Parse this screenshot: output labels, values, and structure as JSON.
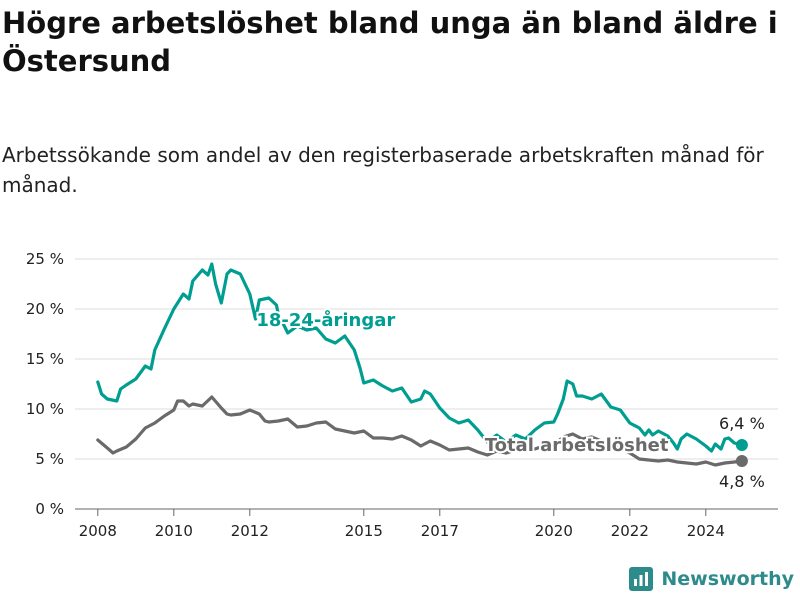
{
  "title": "Högre arbetslöshet bland unga än bland äldre i Östersund",
  "subtitle": "Arbetssökande som andel av den registerbaserade arbetskraften månad för månad.",
  "brand": {
    "name": "Newsworthy",
    "icon": "bar-chart-icon"
  },
  "colors": {
    "youth": "#009e91",
    "total": "#6a6a6a",
    "grid": "#dddddd",
    "baseline": "#666666",
    "brand": "#2e8b8b"
  },
  "chart_data": {
    "type": "line",
    "xlim": [
      2007.4,
      2025.9
    ],
    "ylim": [
      0,
      25
    ],
    "y_ticks": [
      {
        "value": 0,
        "label": "0 %"
      },
      {
        "value": 5,
        "label": "5 %"
      },
      {
        "value": 10,
        "label": "10 %"
      },
      {
        "value": 15,
        "label": "15 %"
      },
      {
        "value": 20,
        "label": "20 %"
      },
      {
        "value": 25,
        "label": "25 %"
      }
    ],
    "x_ticks": [
      {
        "value": 2008,
        "label": "2008"
      },
      {
        "value": 2010,
        "label": "2010"
      },
      {
        "value": 2012,
        "label": "2012"
      },
      {
        "value": 2015,
        "label": "2015"
      },
      {
        "value": 2017,
        "label": "2017"
      },
      {
        "value": 2020,
        "label": "2020"
      },
      {
        "value": 2022,
        "label": "2022"
      },
      {
        "value": 2024,
        "label": "2024"
      }
    ],
    "grid": true,
    "series": [
      {
        "name": "18-24-åringar",
        "color": "#009e91",
        "last_value_label": "6,4 %",
        "points": [
          [
            2008.0,
            12.7
          ],
          [
            2008.1,
            11.5
          ],
          [
            2008.25,
            11.0
          ],
          [
            2008.5,
            10.8
          ],
          [
            2008.6,
            12.0
          ],
          [
            2008.75,
            12.4
          ],
          [
            2009.0,
            13.0
          ],
          [
            2009.25,
            14.3
          ],
          [
            2009.4,
            14.0
          ],
          [
            2009.5,
            15.9
          ],
          [
            2009.75,
            18.0
          ],
          [
            2010.0,
            20.0
          ],
          [
            2010.25,
            21.5
          ],
          [
            2010.4,
            21.0
          ],
          [
            2010.5,
            22.8
          ],
          [
            2010.75,
            23.9
          ],
          [
            2010.9,
            23.4
          ],
          [
            2011.0,
            24.5
          ],
          [
            2011.1,
            22.5
          ],
          [
            2011.25,
            20.6
          ],
          [
            2011.4,
            23.5
          ],
          [
            2011.5,
            23.9
          ],
          [
            2011.75,
            23.5
          ],
          [
            2012.0,
            21.5
          ],
          [
            2012.15,
            19.0
          ],
          [
            2012.25,
            20.9
          ],
          [
            2012.5,
            21.1
          ],
          [
            2012.7,
            20.4
          ],
          [
            2012.75,
            19.5
          ],
          [
            2013.0,
            17.6
          ],
          [
            2013.25,
            18.3
          ],
          [
            2013.5,
            17.9
          ],
          [
            2013.75,
            18.1
          ],
          [
            2014.0,
            17.0
          ],
          [
            2014.25,
            16.6
          ],
          [
            2014.5,
            17.3
          ],
          [
            2014.75,
            15.9
          ],
          [
            2014.9,
            14.1
          ],
          [
            2015.0,
            12.6
          ],
          [
            2015.25,
            12.9
          ],
          [
            2015.5,
            12.3
          ],
          [
            2015.75,
            11.8
          ],
          [
            2016.0,
            12.1
          ],
          [
            2016.25,
            10.7
          ],
          [
            2016.5,
            11.0
          ],
          [
            2016.6,
            11.8
          ],
          [
            2016.75,
            11.5
          ],
          [
            2017.0,
            10.1
          ],
          [
            2017.25,
            9.1
          ],
          [
            2017.5,
            8.6
          ],
          [
            2017.75,
            8.9
          ],
          [
            2018.0,
            7.9
          ],
          [
            2018.25,
            6.7
          ],
          [
            2018.5,
            7.4
          ],
          [
            2018.75,
            6.7
          ],
          [
            2019.0,
            7.4
          ],
          [
            2019.25,
            7.0
          ],
          [
            2019.5,
            7.9
          ],
          [
            2019.75,
            8.6
          ],
          [
            2020.0,
            8.7
          ],
          [
            2020.1,
            9.5
          ],
          [
            2020.25,
            11.0
          ],
          [
            2020.35,
            12.8
          ],
          [
            2020.5,
            12.5
          ],
          [
            2020.6,
            11.3
          ],
          [
            2020.75,
            11.3
          ],
          [
            2021.0,
            11.0
          ],
          [
            2021.25,
            11.5
          ],
          [
            2021.5,
            10.2
          ],
          [
            2021.75,
            9.9
          ],
          [
            2022.0,
            8.6
          ],
          [
            2022.25,
            8.1
          ],
          [
            2022.4,
            7.4
          ],
          [
            2022.5,
            7.9
          ],
          [
            2022.6,
            7.4
          ],
          [
            2022.75,
            7.8
          ],
          [
            2023.0,
            7.3
          ],
          [
            2023.15,
            6.6
          ],
          [
            2023.25,
            6.0
          ],
          [
            2023.35,
            7.0
          ],
          [
            2023.5,
            7.5
          ],
          [
            2023.75,
            7.0
          ],
          [
            2024.0,
            6.3
          ],
          [
            2024.15,
            5.8
          ],
          [
            2024.25,
            6.5
          ],
          [
            2024.4,
            6.0
          ],
          [
            2024.5,
            7.0
          ],
          [
            2024.6,
            7.1
          ],
          [
            2024.75,
            6.6
          ],
          [
            2024.95,
            6.4
          ]
        ]
      },
      {
        "name": "Total arbetslöshet",
        "color": "#6a6a6a",
        "last_value_label": "4,8 %",
        "points": [
          [
            2008.0,
            6.9
          ],
          [
            2008.25,
            6.1
          ],
          [
            2008.4,
            5.6
          ],
          [
            2008.5,
            5.8
          ],
          [
            2008.75,
            6.2
          ],
          [
            2009.0,
            7.0
          ],
          [
            2009.25,
            8.1
          ],
          [
            2009.5,
            8.6
          ],
          [
            2009.75,
            9.3
          ],
          [
            2010.0,
            9.9
          ],
          [
            2010.1,
            10.8
          ],
          [
            2010.25,
            10.8
          ],
          [
            2010.4,
            10.3
          ],
          [
            2010.5,
            10.5
          ],
          [
            2010.75,
            10.3
          ],
          [
            2011.0,
            11.2
          ],
          [
            2011.25,
            10.1
          ],
          [
            2011.4,
            9.5
          ],
          [
            2011.5,
            9.4
          ],
          [
            2011.75,
            9.5
          ],
          [
            2012.0,
            9.9
          ],
          [
            2012.25,
            9.5
          ],
          [
            2012.4,
            8.8
          ],
          [
            2012.5,
            8.7
          ],
          [
            2012.75,
            8.8
          ],
          [
            2013.0,
            9.0
          ],
          [
            2013.25,
            8.2
          ],
          [
            2013.5,
            8.3
          ],
          [
            2013.75,
            8.6
          ],
          [
            2014.0,
            8.7
          ],
          [
            2014.25,
            8.0
          ],
          [
            2014.5,
            7.8
          ],
          [
            2014.75,
            7.6
          ],
          [
            2015.0,
            7.8
          ],
          [
            2015.25,
            7.1
          ],
          [
            2015.5,
            7.1
          ],
          [
            2015.75,
            7.0
          ],
          [
            2016.0,
            7.3
          ],
          [
            2016.25,
            6.9
          ],
          [
            2016.5,
            6.3
          ],
          [
            2016.75,
            6.8
          ],
          [
            2017.0,
            6.4
          ],
          [
            2017.25,
            5.9
          ],
          [
            2017.5,
            6.0
          ],
          [
            2017.75,
            6.1
          ],
          [
            2018.0,
            5.7
          ],
          [
            2018.25,
            5.4
          ],
          [
            2018.5,
            5.8
          ],
          [
            2018.75,
            5.6
          ],
          [
            2019.0,
            5.9
          ],
          [
            2019.25,
            5.8
          ],
          [
            2019.5,
            6.0
          ],
          [
            2019.75,
            6.3
          ],
          [
            2020.0,
            6.4
          ],
          [
            2020.25,
            7.2
          ],
          [
            2020.5,
            7.5
          ],
          [
            2020.75,
            7.0
          ],
          [
            2021.0,
            7.2
          ],
          [
            2021.25,
            6.8
          ],
          [
            2021.5,
            6.5
          ],
          [
            2021.75,
            6.1
          ],
          [
            2022.0,
            5.6
          ],
          [
            2022.25,
            5.0
          ],
          [
            2022.5,
            4.9
          ],
          [
            2022.75,
            4.8
          ],
          [
            2023.0,
            4.9
          ],
          [
            2023.25,
            4.7
          ],
          [
            2023.5,
            4.6
          ],
          [
            2023.75,
            4.5
          ],
          [
            2024.0,
            4.7
          ],
          [
            2024.25,
            4.4
          ],
          [
            2024.5,
            4.6
          ],
          [
            2024.75,
            4.7
          ],
          [
            2024.95,
            4.8
          ]
        ]
      }
    ],
    "annotations": [
      {
        "text": "18-24-åringar",
        "x": 2014.0,
        "y": 18.3,
        "color": "#009e91"
      },
      {
        "text": "Total arbetslöshet",
        "x": 2020.6,
        "y": 5.8,
        "color": "#6a6a6a"
      }
    ]
  }
}
